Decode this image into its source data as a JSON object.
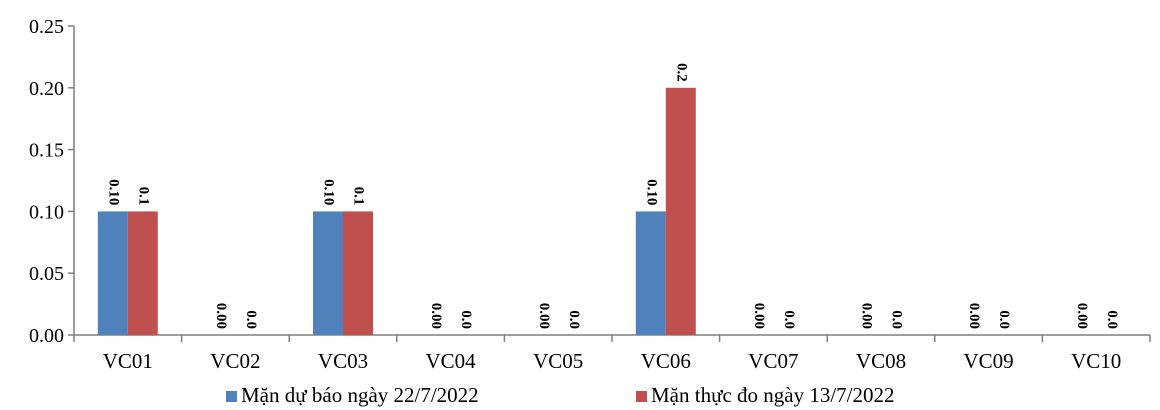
{
  "chart_data": {
    "type": "bar",
    "title": "",
    "xlabel": "",
    "ylabel": "",
    "ylim": [
      0,
      0.25
    ],
    "yticks": [
      "0.00",
      "0.05",
      "0.10",
      "0.15",
      "0.20",
      "0.25"
    ],
    "grid": false,
    "legend_position": "bottom",
    "categories": [
      "VC01",
      "VC02",
      "VC03",
      "VC04",
      "VC05",
      "VC06",
      "VC07",
      "VC08",
      "VC09",
      "VC10"
    ],
    "series": [
      {
        "name": "Mặn dự báo ngày 22/7/2022",
        "color": "#4f81bd",
        "values": [
          0.1,
          0.0,
          0.1,
          0.0,
          0.0,
          0.1,
          0.0,
          0.0,
          0.0,
          0.0
        ],
        "labels": [
          "0.10",
          "0.00",
          "0.10",
          "0.00",
          "0.00",
          "0.10",
          "0.00",
          "0.00",
          "0.00",
          "0.00"
        ]
      },
      {
        "name": "Mặn thực đo ngày 13/7/2022",
        "color": "#c0504d",
        "values": [
          0.1,
          0.0,
          0.1,
          0.0,
          0.0,
          0.2,
          0.0,
          0.0,
          0.0,
          0.0
        ],
        "labels": [
          "0.1",
          "0.0",
          "0.1",
          "0.0",
          "0.0",
          "0.2",
          "0.0",
          "0.0",
          "0.0",
          "0.0"
        ]
      }
    ]
  }
}
